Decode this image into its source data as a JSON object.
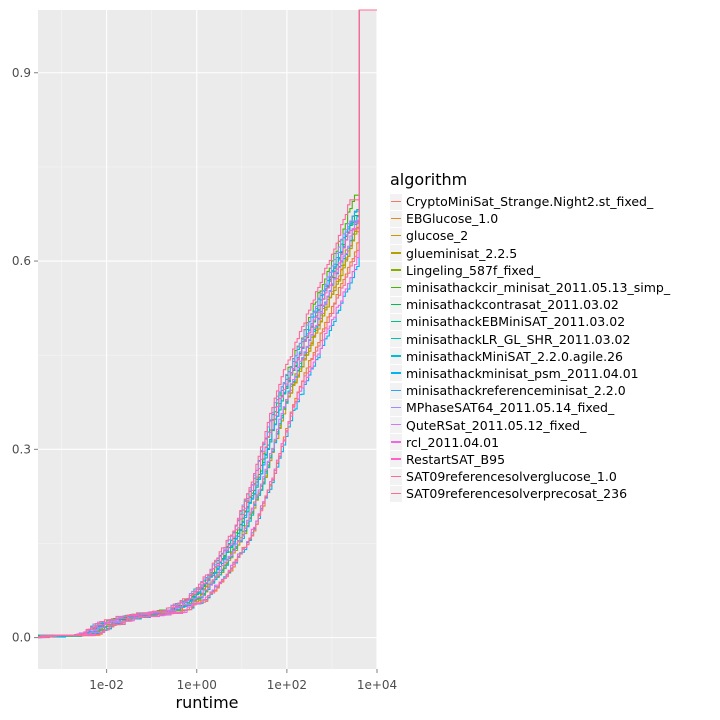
{
  "chart_data": {
    "type": "line",
    "xlabel": "runtime",
    "ylabel": "",
    "x_scale": "log10",
    "xlim": [
      0.0003,
      10000
    ],
    "ylim": [
      -0.05,
      1.0
    ],
    "x_ticks": [
      0.01,
      1,
      100,
      10000
    ],
    "x_tick_labels": [
      "1e-02",
      "1e+00",
      "1e+02",
      "1e+04"
    ],
    "y_ticks": [
      0.0,
      0.3,
      0.6,
      0.9
    ],
    "y_tick_labels": [
      "0.0",
      "0.3",
      "0.6",
      "0.9"
    ],
    "grid": true,
    "legend": {
      "title": "algorithm",
      "placement": "right",
      "entries": [
        {
          "name": "CryptoMiniSat_Strange.Night2.st_fixed_",
          "color": "#F8766D"
        },
        {
          "name": "EBGlucose_1.0",
          "color": "#E7851E"
        },
        {
          "name": "glucose_2",
          "color": "#D09400"
        },
        {
          "name": "glueminisat_2.2.5",
          "color": "#B2A100"
        },
        {
          "name": "Lingeling_587f_fixed_",
          "color": "#89AC00"
        },
        {
          "name": "minisathackcir_minisat_2011.05.13_simp_",
          "color": "#45B500"
        },
        {
          "name": "minisathackcontrasat_2011.03.02",
          "color": "#00BC51"
        },
        {
          "name": "minisathackEBMiniSAT_2011.03.02",
          "color": "#00C087"
        },
        {
          "name": "minisathackLR_GL_SHR_2011.03.02",
          "color": "#00C0B2"
        },
        {
          "name": "minisathackMiniSAT_2.2.0.agile.26",
          "color": "#00BCD6"
        },
        {
          "name": "minisathackminisat_psm_2011.04.01",
          "color": "#00B3F2"
        },
        {
          "name": "minisathackreferenceminisat_2.2.0",
          "color": "#29A3FF"
        },
        {
          "name": "MPhaseSAT64_2011.05.14_fixed_",
          "color": "#9C8DFF"
        },
        {
          "name": "QuteRSat_2011.05.12_fixed_",
          "color": "#D277FF"
        },
        {
          "name": "rcl_2011.04.01",
          "color": "#F166E8"
        },
        {
          "name": "RestartSAT_B95",
          "color": "#FF61C7"
        },
        {
          "name": "SAT09referencesolverglucose_1.0",
          "color": "#FF689E"
        },
        {
          "name": "SAT09referencesolverprecosat_236",
          "color": "#FF6C91"
        }
      ]
    },
    "approx_curve": {
      "x": [
        0.0003,
        0.003,
        0.006,
        0.01,
        0.03,
        0.1,
        0.3,
        1,
        3,
        10,
        30,
        100,
        300,
        1000,
        2000,
        3000,
        4000
      ],
      "y": [
        0.0,
        0.0,
        0.01,
        0.02,
        0.03,
        0.035,
        0.04,
        0.06,
        0.1,
        0.16,
        0.25,
        0.38,
        0.46,
        0.55,
        0.6,
        0.64,
        0.66
      ]
    },
    "final_step": {
      "x": 4000,
      "y": 1.0
    },
    "series_offsets_note": ""
  }
}
